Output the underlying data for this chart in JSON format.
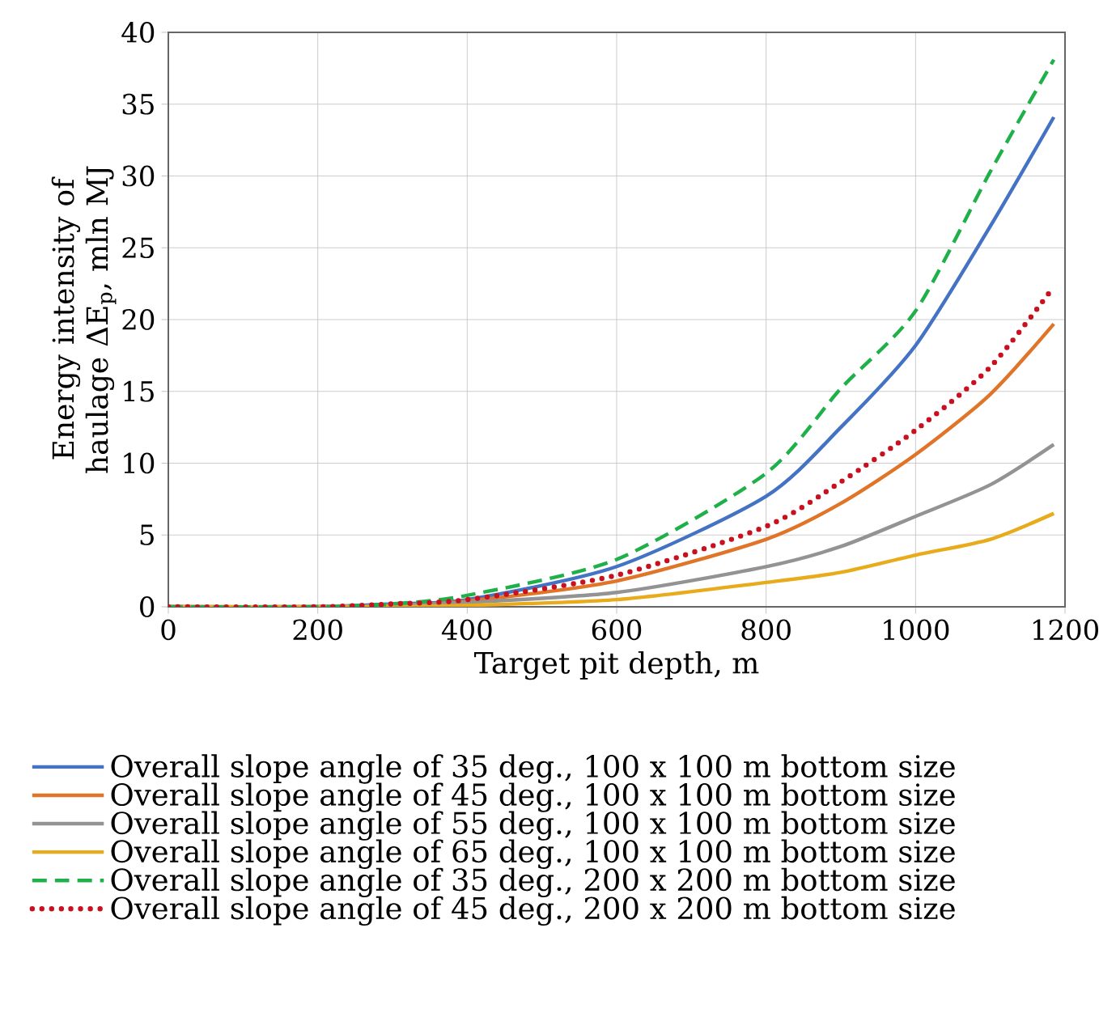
{
  "chart_data": {
    "type": "line",
    "xlabel": "Target pit depth, m",
    "ylabel": "Energy intensity of haulage ΔE$_{p}$, mln MJ",
    "xlim": [
      0,
      1200
    ],
    "xticks": [
      0,
      200,
      400,
      600,
      800,
      1000,
      1200
    ],
    "ylim": [
      0,
      40
    ],
    "yticks": [
      0,
      5,
      10,
      15,
      20,
      25,
      30,
      35,
      40
    ],
    "grid": true,
    "legend": "bottom",
    "series": [
      {
        "name": "Overall slope angle of 35 deg., 100 x 100 m bottom size",
        "color": "#4472c4",
        "line_style": "solid",
        "x": [
          0,
          200,
          300,
          400,
          600,
          800,
          900,
          1000,
          1100,
          1185
        ],
        "values": [
          0,
          0,
          0.2,
          0.5,
          2.8,
          7.7,
          12.5,
          18.2,
          26.5,
          34.1
        ]
      },
      {
        "name": "Overall slope angle of 45 deg., 100 x 100 m bottom size",
        "color": "#e07428",
        "line_style": "solid",
        "x": [
          0,
          200,
          300,
          400,
          600,
          800,
          900,
          1000,
          1100,
          1185
        ],
        "values": [
          0,
          0,
          0.1,
          0.4,
          1.8,
          4.7,
          7.2,
          10.6,
          14.8,
          19.7
        ]
      },
      {
        "name": "Overall slope angle of 55 deg., 100 x 100 m bottom size",
        "color": "#939393",
        "line_style": "solid",
        "x": [
          0,
          200,
          300,
          400,
          600,
          800,
          900,
          1000,
          1100,
          1185
        ],
        "values": [
          0,
          0,
          0.1,
          0.3,
          1.0,
          2.8,
          4.2,
          6.3,
          8.5,
          11.3
        ]
      },
      {
        "name": "Overall slope angle of 65 deg., 100 x 100 m bottom size",
        "color": "#e8ab1c",
        "line_style": "solid",
        "x": [
          0,
          200,
          300,
          400,
          600,
          800,
          900,
          1000,
          1100,
          1185
        ],
        "values": [
          0,
          0,
          0,
          0.1,
          0.5,
          1.7,
          2.4,
          3.6,
          4.7,
          6.5
        ]
      },
      {
        "name": "Overall slope angle of 35 deg., 200 x 200 m bottom size",
        "color": "#1fb04a",
        "line_style": "dashed",
        "x": [
          0,
          200,
          300,
          400,
          600,
          800,
          900,
          1000,
          1100,
          1185
        ],
        "values": [
          0,
          0,
          0.2,
          0.8,
          3.3,
          9.3,
          15.2,
          20.6,
          30.3,
          38.1
        ]
      },
      {
        "name": "Overall slope angle of 45 deg., 200 x 200 m bottom size",
        "color": "#c8101e",
        "line_style": "dotted",
        "x": [
          0,
          200,
          300,
          400,
          600,
          800,
          900,
          1000,
          1100,
          1185
        ],
        "values": [
          0,
          0,
          0.2,
          0.5,
          2.2,
          5.6,
          8.7,
          12.3,
          16.7,
          22.3
        ]
      }
    ]
  }
}
